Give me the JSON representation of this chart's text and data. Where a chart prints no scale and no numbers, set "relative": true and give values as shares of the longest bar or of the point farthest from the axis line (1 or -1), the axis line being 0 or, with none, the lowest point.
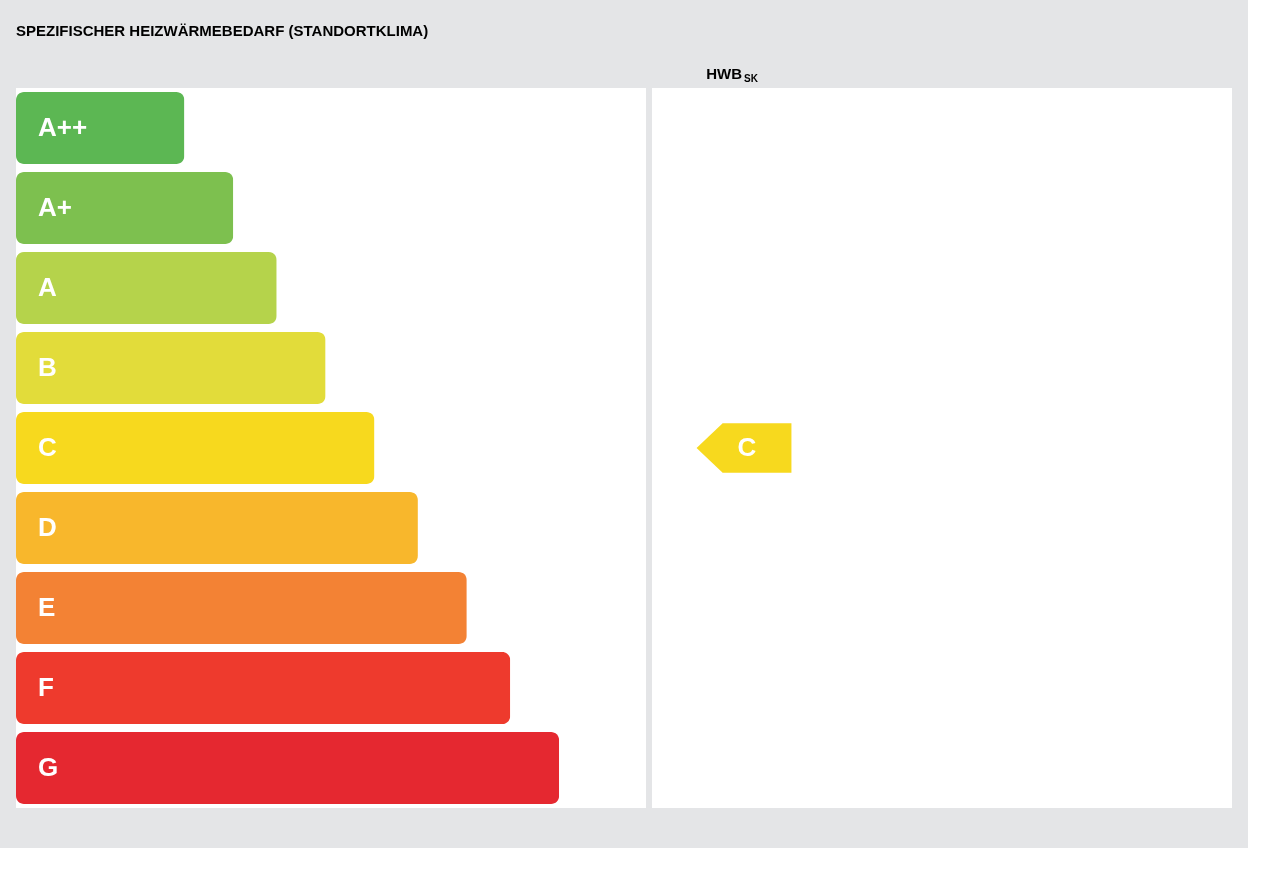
{
  "chart_data": {
    "type": "bar",
    "orientation": "horizontal",
    "relative": true,
    "title": "SPEZIFISCHER HEIZWÄRMEBEDARF (STANDORTKLIMA)",
    "categories": [
      "A++",
      "A+",
      "A",
      "B",
      "C",
      "D",
      "E",
      "F",
      "G"
    ],
    "values": [
      0.31,
      0.4,
      0.48,
      0.57,
      0.66,
      0.74,
      0.83,
      0.91,
      1.0
    ],
    "colors": [
      "#5cb753",
      "#7dc04f",
      "#b5d34b",
      "#e2dc3a",
      "#f7d91e",
      "#f8b72c",
      "#f38234",
      "#ee3a2d",
      "#e52830"
    ],
    "annotations": [
      "HWB$_{SK}$",
      "C"
    ]
  }
}
